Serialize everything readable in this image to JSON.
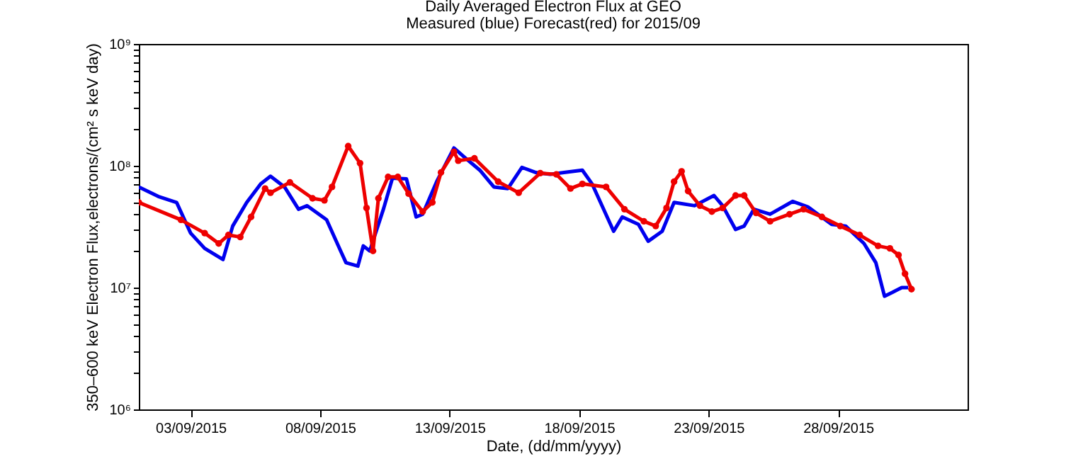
{
  "chart_data": {
    "type": "line",
    "title": "Daily Averaged Electron Flux at GEO",
    "subtitle": "Measured (blue) Forecast(red) for 2015/09",
    "xlabel": "Date, (dd/mm/yyyy)",
    "ylabel": "350–600 keV Electron Flux,electrons/(cm² s keV day)",
    "log": "y",
    "grid": false,
    "xlim": [
      "2015-09-01",
      "2015-10-03"
    ],
    "xticks": [
      {
        "value": "2015-09-03",
        "label": "03/09/2015"
      },
      {
        "value": "2015-09-08",
        "label": "08/09/2015"
      },
      {
        "value": "2015-09-13",
        "label": "13/09/2015"
      },
      {
        "value": "2015-09-18",
        "label": "18/09/2015"
      },
      {
        "value": "2015-09-23",
        "label": "23/09/2015"
      },
      {
        "value": "2015-09-28",
        "label": "28/09/2015"
      }
    ],
    "ylim": [
      1000000,
      1000000000
    ],
    "yticks": [
      {
        "value": 1000000,
        "label": "10⁶"
      },
      {
        "value": 2000000,
        "label": null
      },
      {
        "value": 3000000,
        "label": null
      },
      {
        "value": 4000000,
        "label": null
      },
      {
        "value": 5000000,
        "label": null
      },
      {
        "value": 6000000,
        "label": null
      },
      {
        "value": 7000000,
        "label": null
      },
      {
        "value": 8000000,
        "label": null
      },
      {
        "value": 9000000,
        "label": null
      },
      {
        "value": 10000000,
        "label": "10⁷"
      },
      {
        "value": 20000000,
        "label": null
      },
      {
        "value": 30000000,
        "label": null
      },
      {
        "value": 40000000,
        "label": null
      },
      {
        "value": 50000000,
        "label": null
      },
      {
        "value": 60000000,
        "label": null
      },
      {
        "value": 70000000,
        "label": null
      },
      {
        "value": 80000000,
        "label": null
      },
      {
        "value": 90000000,
        "label": null
      },
      {
        "value": 100000000,
        "label": "10⁸"
      },
      {
        "value": 200000000,
        "label": null
      },
      {
        "value": 300000000,
        "label": null
      },
      {
        "value": 400000000,
        "label": null
      },
      {
        "value": 500000000,
        "label": null
      },
      {
        "value": 600000000,
        "label": null
      },
      {
        "value": 700000000,
        "label": null
      },
      {
        "value": 800000000,
        "label": null
      },
      {
        "value": 900000000,
        "label": null
      },
      {
        "value": 1000000000,
        "label": "10⁹"
      }
    ],
    "series": [
      {
        "color": "#0000ee",
        "marker": "none",
        "x": [
          "2015-09-01T00:00",
          "2015-09-01T18:00",
          "2015-09-02T11:00",
          "2015-09-03T00:00",
          "2015-09-03T13:00",
          "2015-09-04T06:00",
          "2015-09-04T15:00",
          "2015-09-05T04:00",
          "2015-09-05T17:00",
          "2015-09-06T02:00",
          "2015-09-06T15:00",
          "2015-09-07T04:00",
          "2015-09-07T12:00",
          "2015-09-08T06:00",
          "2015-09-08T19:00",
          "2015-09-09T00:00",
          "2015-09-09T11:00",
          "2015-09-09T16:00",
          "2015-09-09T22:00",
          "2015-09-10T11:00",
          "2015-09-10T19:00",
          "2015-09-11T08:00",
          "2015-09-11T17:00",
          "2015-09-11T23:00",
          "2015-09-12T12:00",
          "2015-09-13T04:00",
          "2015-09-13T15:00",
          "2015-09-14T04:00",
          "2015-09-14T17:00",
          "2015-09-15T06:00",
          "2015-09-15T19:00",
          "2015-09-16T08:00",
          "2015-09-16T21:00",
          "2015-09-17T10:00",
          "2015-09-18T03:00",
          "2015-09-18T12:00",
          "2015-09-19T08:00",
          "2015-09-19T16:00",
          "2015-09-20T07:00",
          "2015-09-20T16:00",
          "2015-09-21T05:00",
          "2015-09-21T16:00",
          "2015-09-22T11:00",
          "2015-09-23T05:00",
          "2015-09-23T13:00",
          "2015-09-24T01:00",
          "2015-09-24T09:00",
          "2015-09-24T18:00",
          "2015-09-25T09:00",
          "2015-09-26T06:00",
          "2015-09-26T20:00",
          "2015-09-27T18:00",
          "2015-09-28T07:00",
          "2015-09-29T00:00",
          "2015-09-29T11:00",
          "2015-09-29T19:00",
          "2015-09-30T02:00",
          "2015-09-30T11:00",
          "2015-09-30T17:00"
        ],
        "values": [
          67000000,
          56000000,
          50000000,
          28000000,
          21000000,
          17000000,
          32000000,
          50000000,
          71000000,
          82000000,
          67000000,
          44000000,
          47000000,
          36000000,
          20000000,
          16000000,
          15000000,
          22000000,
          20000000,
          45000000,
          79000000,
          78000000,
          38000000,
          40000000,
          74000000,
          140000000,
          115000000,
          92000000,
          67000000,
          65000000,
          97000000,
          88000000,
          85000000,
          88000000,
          92000000,
          71000000,
          29000000,
          38000000,
          33000000,
          24000000,
          29000000,
          50000000,
          47000000,
          57000000,
          47000000,
          30000000,
          32000000,
          44000000,
          40000000,
          51000000,
          46000000,
          33000000,
          32000000,
          23000000,
          16000000,
          8500000,
          9100000,
          10000000,
          10000000
        ]
      },
      {
        "color": "#ee0000",
        "marker": "circle",
        "x": [
          "2015-09-01T00:00",
          "2015-09-02T15:00",
          "2015-09-03T13:00",
          "2015-09-04T02:00",
          "2015-09-04T11:00",
          "2015-09-04T22:00",
          "2015-09-05T08:00",
          "2015-09-05T21:00",
          "2015-09-06T02:00",
          "2015-09-06T20:00",
          "2015-09-07T17:00",
          "2015-09-08T04:00",
          "2015-09-08T11:00",
          "2015-09-09T02:00",
          "2015-09-09T13:00",
          "2015-09-09T19:00",
          "2015-09-10T01:00",
          "2015-09-10T06:00",
          "2015-09-10T15:00",
          "2015-09-11T00:00",
          "2015-09-11T10:00",
          "2015-09-11T23:00",
          "2015-09-12T08:00",
          "2015-09-12T16:00",
          "2015-09-13T04:00",
          "2015-09-13T08:00",
          "2015-09-13T23:00",
          "2015-09-14T21:00",
          "2015-09-15T16:00",
          "2015-09-16T12:00",
          "2015-09-17T03:00",
          "2015-09-17T16:00",
          "2015-09-18T03:00",
          "2015-09-19T01:00",
          "2015-09-19T18:00",
          "2015-09-20T12:00",
          "2015-09-20T23:00",
          "2015-09-21T09:00",
          "2015-09-21T16:00",
          "2015-09-21T23:00",
          "2015-09-22T05:00",
          "2015-09-22T16:00",
          "2015-09-23T03:00",
          "2015-09-23T13:00",
          "2015-09-24T01:00",
          "2015-09-24T09:00",
          "2015-09-24T20:00",
          "2015-09-25T09:00",
          "2015-09-26T03:00",
          "2015-09-26T16:00",
          "2015-09-27T09:00",
          "2015-09-28T02:00",
          "2015-09-28T20:00",
          "2015-09-29T13:00",
          "2015-09-30T00:00",
          "2015-09-30T08:00",
          "2015-09-30T14:00",
          "2015-09-30T20:00"
        ],
        "values": [
          50000000,
          36000000,
          28000000,
          23000000,
          27000000,
          26000000,
          38000000,
          65000000,
          60000000,
          73000000,
          54000000,
          52000000,
          67000000,
          145000000,
          105000000,
          45000000,
          20000000,
          54000000,
          81000000,
          81000000,
          59000000,
          42000000,
          50000000,
          88000000,
          130000000,
          110000000,
          115000000,
          74000000,
          60000000,
          87000000,
          85000000,
          65000000,
          71000000,
          67000000,
          44000000,
          35000000,
          32000000,
          45000000,
          74000000,
          90000000,
          62000000,
          47000000,
          42000000,
          45000000,
          57000000,
          57000000,
          41000000,
          35000000,
          40000000,
          44000000,
          38000000,
          32000000,
          27000000,
          22000000,
          21000000,
          18500000,
          13000000,
          9700000
        ]
      }
    ]
  }
}
